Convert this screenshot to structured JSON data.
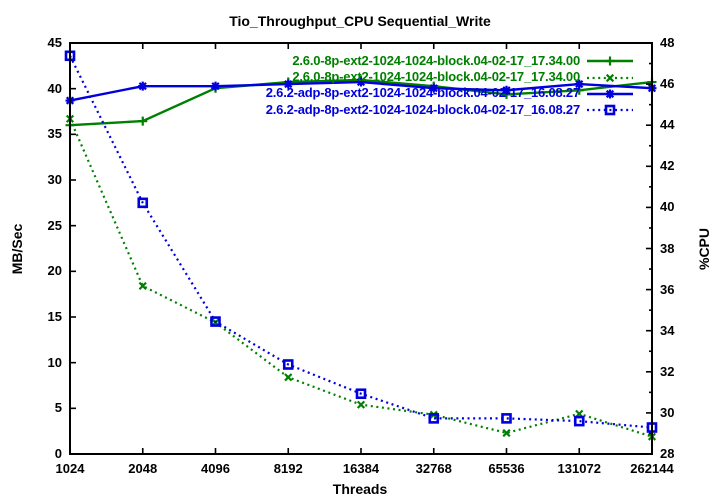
{
  "window": {
    "background": "#ffffff"
  },
  "chart_data": {
    "type": "line",
    "title": "Tio_Throughput_CPU Sequential_Write",
    "xlabel": "Threads",
    "ylabel": "MB/Sec",
    "y2label": "%CPU",
    "x_scale": "log2",
    "x_categories": [
      "1024",
      "2048",
      "4096",
      "8192",
      "16384",
      "32768",
      "65536",
      "131072",
      "262144"
    ],
    "ylim": [
      0,
      45
    ],
    "y_ticks": [
      0,
      5,
      10,
      15,
      20,
      25,
      30,
      35,
      40,
      45
    ],
    "y2lim": [
      28,
      48
    ],
    "y2_ticks": [
      28,
      30,
      32,
      34,
      36,
      38,
      40,
      42,
      44,
      46,
      48
    ],
    "grid": false,
    "legend_position": "top-right-inside",
    "text_color": "#000000",
    "frame_color": "#000000",
    "series": [
      {
        "name": "2.6.0-8p-ext2-1024-1024-block.04-02-17_17.34.00",
        "color": "#008000",
        "line": "solid",
        "marker": "plus",
        "axis": "y2",
        "unit": "%CPU",
        "values": [
          44.0,
          44.2,
          45.8,
          46.1,
          46.2,
          45.9,
          45.5,
          45.7,
          46.1
        ]
      },
      {
        "name": "2.6.0-8p-ext2-1024-1024-block.04-02-17_17.34.00",
        "color": "#008000",
        "line": "dotted",
        "marker": "cross",
        "axis": "y1",
        "unit": "MB/Sec",
        "values": [
          36.7,
          18.4,
          14.4,
          8.4,
          5.4,
          4.3,
          2.3,
          4.4,
          1.9
        ]
      },
      {
        "name": "2.6.2-adp-8p-ext2-1024-1024-block.04-02-17_16.08.27",
        "color": "#0000dd",
        "line": "solid",
        "marker": "asterisk",
        "axis": "y2",
        "unit": "%CPU",
        "values": [
          45.2,
          45.9,
          45.9,
          46.0,
          46.1,
          45.8,
          45.7,
          46.0,
          45.8
        ]
      },
      {
        "name": "2.6.2-adp-8p-ext2-1024-1024-block.04-02-17_16.08.27",
        "color": "#0000dd",
        "line": "dotted",
        "marker": "square-open",
        "axis": "y1",
        "unit": "MB/Sec",
        "values": [
          43.6,
          27.5,
          14.5,
          9.8,
          6.6,
          3.9,
          3.9,
          3.6,
          2.9
        ]
      }
    ]
  }
}
